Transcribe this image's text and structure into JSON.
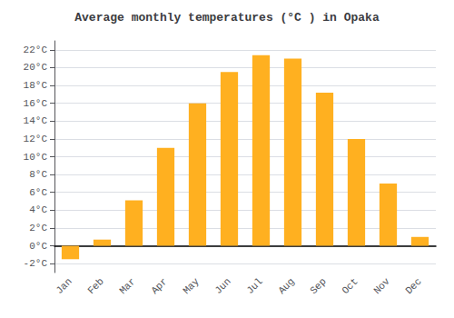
{
  "chart_data": {
    "type": "bar",
    "title": "Average monthly temperatures (°C ) in Opaka",
    "categories": [
      "Jan",
      "Feb",
      "Mar",
      "Apr",
      "May",
      "Jun",
      "Jul",
      "Aug",
      "Sep",
      "Oct",
      "Nov",
      "Dec"
    ],
    "values": [
      -1.5,
      0.7,
      5.1,
      11.0,
      16.0,
      19.5,
      21.4,
      21.0,
      17.2,
      12.0,
      7.0,
      1.0
    ],
    "color": "#FFB020",
    "ylim": [
      -3,
      23
    ],
    "yticks": [
      {
        "value": -2,
        "label": "-2°C"
      },
      {
        "value": 0,
        "label": "0°C"
      },
      {
        "value": 2,
        "label": "2°C"
      },
      {
        "value": 4,
        "label": "4°C"
      },
      {
        "value": 6,
        "label": "6°C"
      },
      {
        "value": 8,
        "label": "8°C"
      },
      {
        "value": 10,
        "label": "10°C"
      },
      {
        "value": 12,
        "label": "12°C"
      },
      {
        "value": 14,
        "label": "14°C"
      },
      {
        "value": 16,
        "label": "16°C"
      },
      {
        "value": 18,
        "label": "18°C"
      },
      {
        "value": 20,
        "label": "20°C"
      },
      {
        "value": 22,
        "label": "22°C"
      }
    ],
    "grid": true
  }
}
